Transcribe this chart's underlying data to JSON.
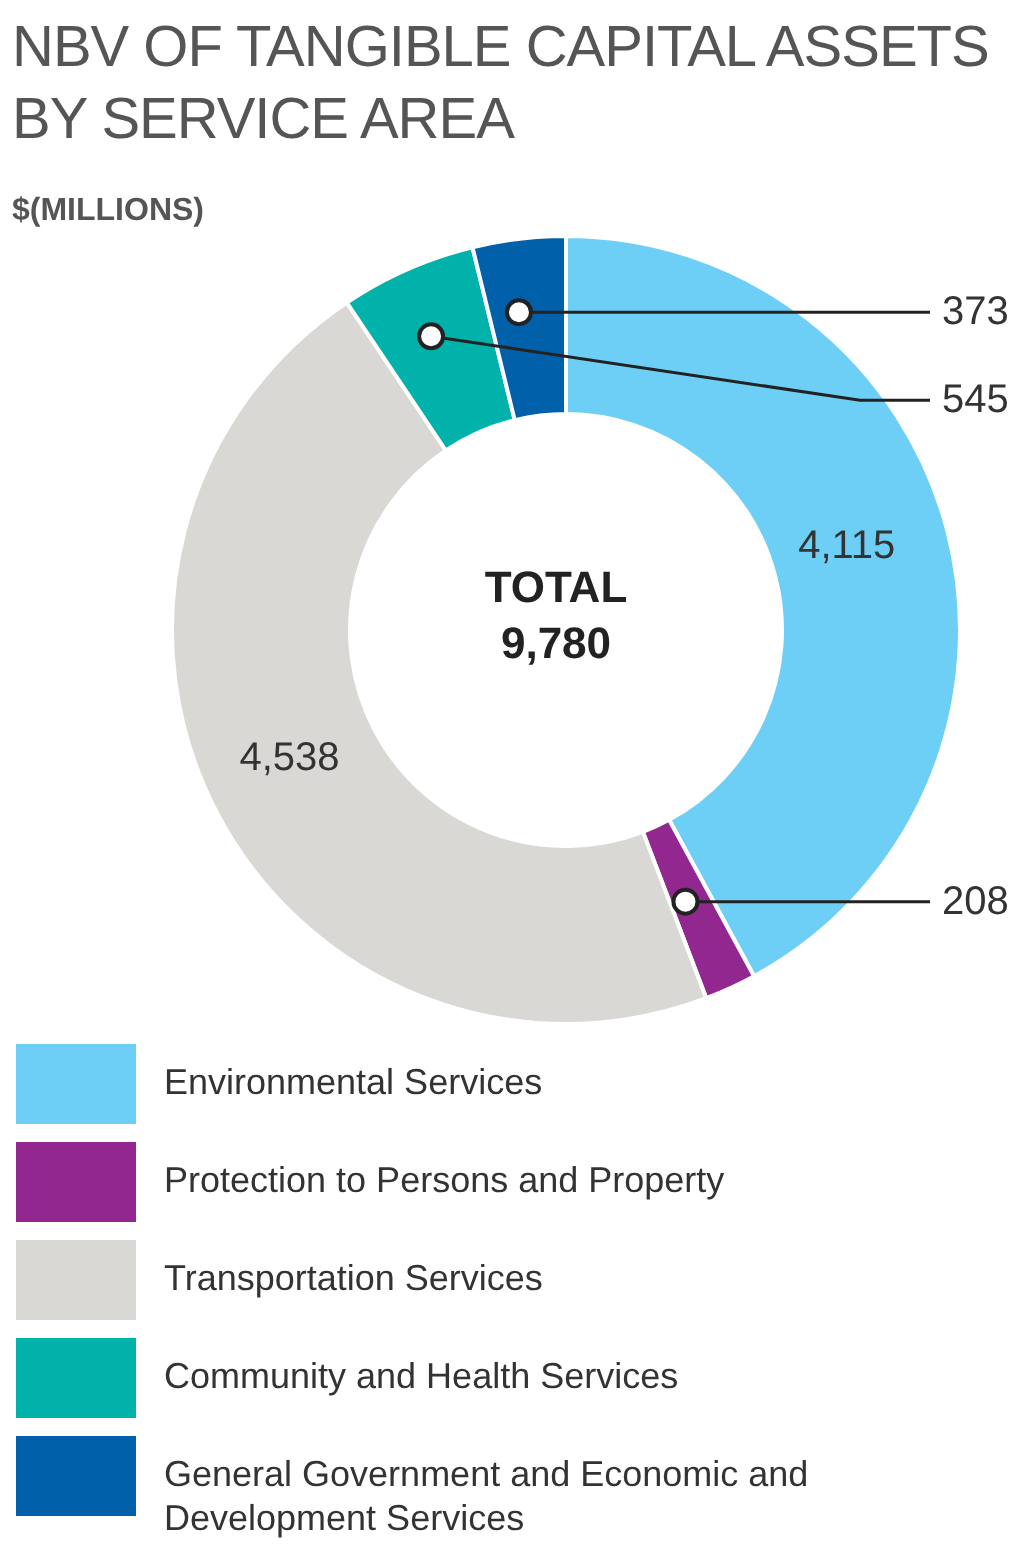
{
  "chart_data": {
    "type": "donut",
    "title": "NBV OF TANGIBLE CAPITAL ASSETS BY SERVICE AREA",
    "subtitle": "$(MILLIONS)",
    "categories": [
      "Environmental Services",
      "Protection to Persons and Property",
      "Transportation Services",
      "Community and Health Services",
      "General Government and Economic and Development Services"
    ],
    "values": [
      4115,
      208,
      4538,
      545,
      373
    ],
    "colors": [
      "#6dcff6",
      "#92278f",
      "#d9d8d4",
      "#00b2a9",
      "#0060a9"
    ],
    "annotations": [
      "TOTAL 9,780"
    ],
    "value_labels": [
      "4,115",
      "208",
      "4,538",
      "545",
      "373"
    ],
    "legend": "bottom"
  }
}
